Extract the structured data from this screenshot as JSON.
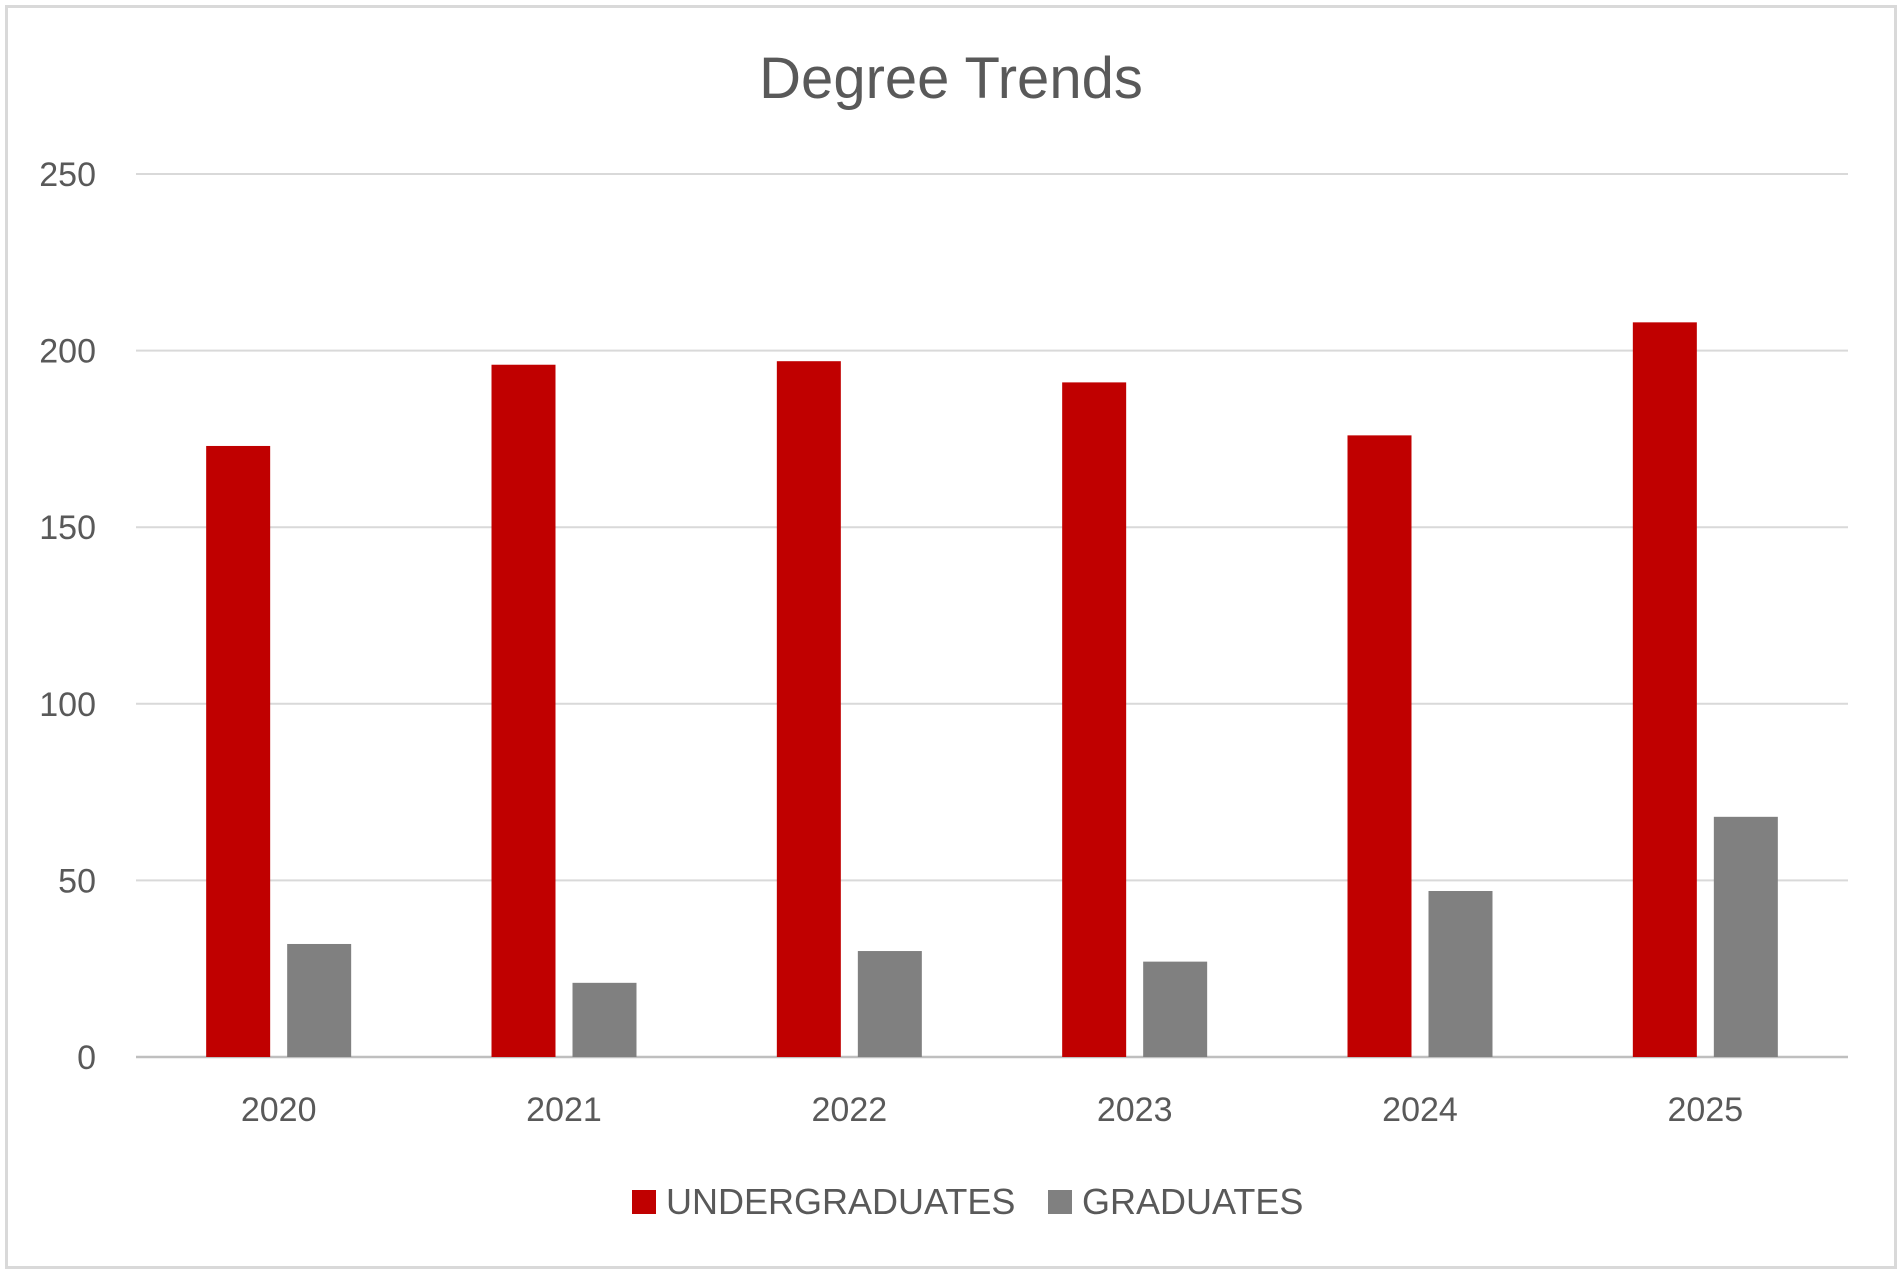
{
  "chart_data": {
    "type": "bar",
    "title": "Degree Trends",
    "xlabel": "",
    "ylabel": "",
    "categories": [
      "2020",
      "2021",
      "2022",
      "2023",
      "2024",
      "2025"
    ],
    "series": [
      {
        "name": "UNDERGRADUATES",
        "color": "#c00000",
        "values": [
          173,
          196,
          197,
          191,
          176,
          208
        ]
      },
      {
        "name": "GRADUATES",
        "color": "#808080",
        "values": [
          32,
          21,
          30,
          27,
          47,
          68
        ]
      }
    ],
    "ylim": [
      0,
      250
    ],
    "yticks": [
      "0",
      "50",
      "100",
      "150",
      "200",
      "250"
    ],
    "grid": true,
    "legend_position": "bottom-center"
  }
}
